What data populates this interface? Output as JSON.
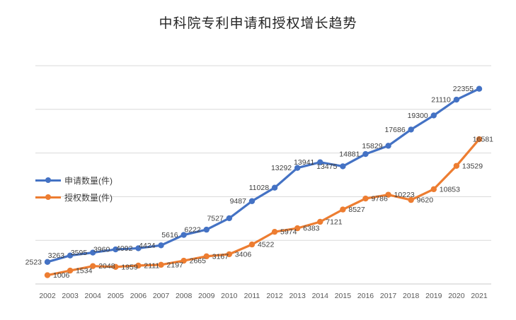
{
  "chart_data": {
    "type": "line",
    "title": "中科院专利申请和授权增长趋势",
    "categories": [
      "2002",
      "2003",
      "2004",
      "2005",
      "2006",
      "2007",
      "2008",
      "2009",
      "2010",
      "2011",
      "2012",
      "2013",
      "2014",
      "2015",
      "2016",
      "2017",
      "2018",
      "2019",
      "2020",
      "2021"
    ],
    "series": [
      {
        "name": "申请数量(件)",
        "color": "#4472C4",
        "label_side": "left",
        "values": [
          2523,
          3263,
          3595,
          3960,
          4092,
          4424,
          5616,
          6222,
          7527,
          9487,
          11028,
          13292,
          13941,
          13475,
          14881,
          15829,
          17686,
          19300,
          21110,
          22355
        ]
      },
      {
        "name": "授权数量(件)",
        "color": "#ED7D31",
        "label_side": "right",
        "values": [
          1006,
          1534,
          2048,
          1959,
          2111,
          2197,
          2665,
          3167,
          3406,
          4522,
          5974,
          6383,
          7121,
          8527,
          9786,
          10223,
          9620,
          10853,
          13529,
          16581
        ]
      }
    ],
    "xlabel": "",
    "ylabel": "",
    "ylim": [
      0,
      25000
    ],
    "y_gridline_step": 5000,
    "grid": "horizontal",
    "legend_position": "inside-left",
    "data_labels": "on"
  },
  "colors": {
    "gridline": "#D9D9D9",
    "axis_line": "#C8C8C8",
    "axis_text": "#595959",
    "data_label_text": "#404040",
    "title_text": "#262626",
    "background": "#FFFFFF"
  }
}
